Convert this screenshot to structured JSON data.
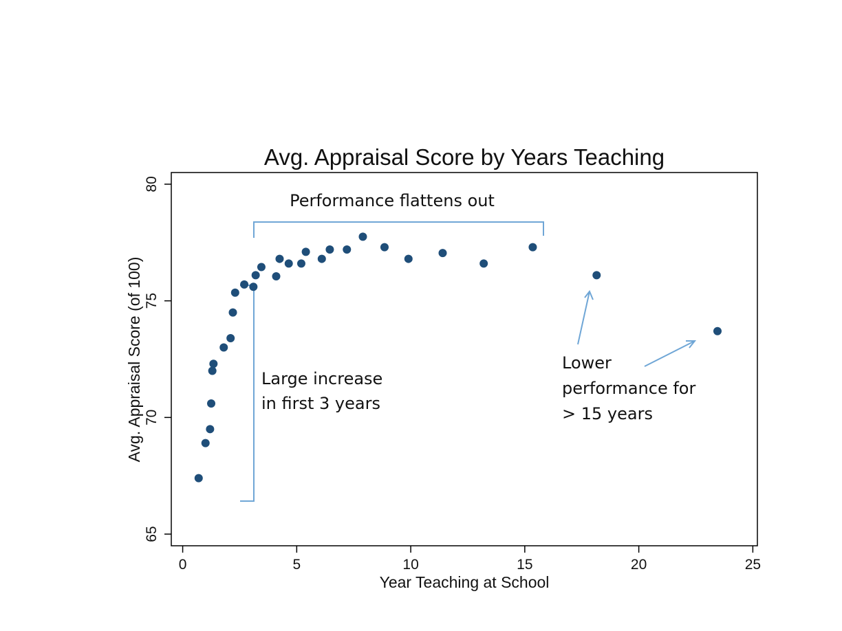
{
  "colors": {
    "marker": "#1f4e79",
    "annotation_line": "#6fa6d6",
    "axis": "#000000",
    "background": "#ffffff"
  },
  "chart_data": {
    "type": "scatter",
    "title": "Avg. Appraisal Score by Years Teaching",
    "xlabel": "Year Teaching at School",
    "ylabel": "Avg. Appraisal Score (of 100)",
    "xlim": [
      -0.5,
      25.2
    ],
    "ylim": [
      64.5,
      80.5
    ],
    "xticks": [
      0,
      5,
      10,
      15,
      20,
      25
    ],
    "yticks": [
      65,
      70,
      75,
      80
    ],
    "grid": false,
    "x": [
      0.7,
      1.0,
      1.2,
      1.25,
      1.3,
      1.35,
      1.8,
      2.1,
      2.2,
      2.3,
      2.7,
      3.1,
      3.2,
      3.45,
      4.1,
      4.25,
      4.65,
      5.2,
      5.4,
      6.1,
      6.45,
      7.2,
      7.9,
      8.85,
      9.9,
      11.4,
      13.2,
      15.35,
      18.15,
      23.45
    ],
    "y": [
      67.4,
      68.9,
      69.5,
      70.6,
      72.0,
      72.3,
      73.0,
      73.4,
      74.5,
      75.35,
      75.7,
      75.6,
      76.1,
      76.45,
      76.05,
      76.8,
      76.6,
      76.6,
      77.1,
      76.8,
      77.2,
      77.2,
      77.75,
      77.3,
      76.8,
      77.05,
      76.6,
      77.3,
      76.1,
      73.7
    ],
    "annotations": [
      {
        "text": "Performance flattens out"
      },
      {
        "text_lines": [
          "Large increase",
          "in first 3 years"
        ]
      },
      {
        "text_lines": [
          "Lower",
          "performance for",
          "> 15 years"
        ]
      }
    ]
  }
}
